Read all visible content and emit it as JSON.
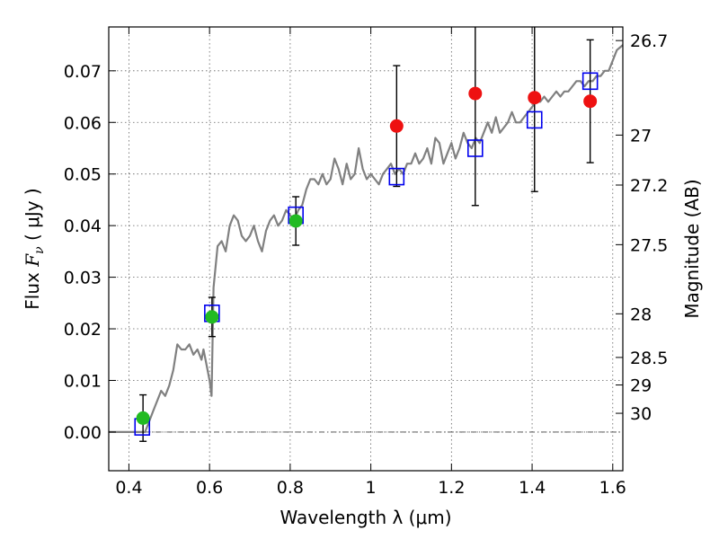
{
  "chart_data": {
    "type": "scatter",
    "xlabel": "Wavelength  λ (μm)",
    "ylabel_left": {
      "prefix": "Flux  ",
      "symbol": "F",
      "subscript": "ν",
      "suffix": "  ( μJy )"
    },
    "ylabel_right": "Magnitude (AB)",
    "xlim": [
      0.35,
      1.625
    ],
    "ylim": [
      -0.0075,
      0.0785
    ],
    "x_ticks": [
      {
        "value": 0.4,
        "label": "0.4"
      },
      {
        "value": 0.6,
        "label": "0.6"
      },
      {
        "value": 0.8,
        "label": "0.8"
      },
      {
        "value": 1.0,
        "label": "1"
      },
      {
        "value": 1.2,
        "label": "1.2"
      },
      {
        "value": 1.4,
        "label": "1.4"
      },
      {
        "value": 1.6,
        "label": "1.6"
      }
    ],
    "y_ticks": [
      {
        "value": 0.0,
        "label": "0.00"
      },
      {
        "value": 0.01,
        "label": "0.01"
      },
      {
        "value": 0.02,
        "label": "0.02"
      },
      {
        "value": 0.03,
        "label": "0.03"
      },
      {
        "value": 0.04,
        "label": "0.04"
      },
      {
        "value": 0.05,
        "label": "0.05"
      },
      {
        "value": 0.06,
        "label": "0.06"
      },
      {
        "value": 0.07,
        "label": "0.07"
      }
    ],
    "right_ticks": [
      {
        "mag": 26.7,
        "label": "26.7"
      },
      {
        "mag": 27,
        "label": "27"
      },
      {
        "mag": 27.2,
        "label": "27.2"
      },
      {
        "mag": 27.5,
        "label": "27.5"
      },
      {
        "mag": 28,
        "label": "28"
      },
      {
        "mag": 28.5,
        "label": "28.5"
      },
      {
        "mag": 29,
        "label": "29"
      },
      {
        "mag": 30,
        "label": "30"
      }
    ],
    "magnitude_zero_point": 23.9,
    "grid": true,
    "zero_line": true,
    "colors": {
      "spectrum": "#808080",
      "model": "#0000ee",
      "detection": "#22bb22",
      "nondetection": "#ee1111",
      "errorbar": "#000000",
      "axis": "#000000",
      "grid": "#606060"
    },
    "spectrum": {
      "x": [
        0.35,
        0.43,
        0.44,
        0.45,
        0.46,
        0.47,
        0.48,
        0.49,
        0.5,
        0.51,
        0.52,
        0.53,
        0.54,
        0.55,
        0.56,
        0.57,
        0.58,
        0.585,
        0.59,
        0.6,
        0.605,
        0.61,
        0.62,
        0.63,
        0.64,
        0.65,
        0.66,
        0.67,
        0.68,
        0.69,
        0.7,
        0.71,
        0.72,
        0.73,
        0.74,
        0.75,
        0.76,
        0.77,
        0.78,
        0.79,
        0.8,
        0.81,
        0.82,
        0.83,
        0.84,
        0.85,
        0.86,
        0.87,
        0.88,
        0.89,
        0.9,
        0.91,
        0.92,
        0.93,
        0.94,
        0.95,
        0.96,
        0.97,
        0.98,
        0.99,
        1.0,
        1.01,
        1.02,
        1.03,
        1.04,
        1.05,
        1.06,
        1.07,
        1.08,
        1.09,
        1.1,
        1.11,
        1.12,
        1.13,
        1.14,
        1.15,
        1.16,
        1.17,
        1.18,
        1.19,
        1.2,
        1.21,
        1.22,
        1.23,
        1.24,
        1.25,
        1.26,
        1.27,
        1.28,
        1.29,
        1.3,
        1.31,
        1.32,
        1.33,
        1.34,
        1.35,
        1.36,
        1.37,
        1.38,
        1.39,
        1.4,
        1.41,
        1.42,
        1.43,
        1.44,
        1.45,
        1.46,
        1.47,
        1.48,
        1.49,
        1.5,
        1.51,
        1.52,
        1.53,
        1.54,
        1.55,
        1.56,
        1.57,
        1.58,
        1.59,
        1.6,
        1.61,
        1.625
      ],
      "y": [
        0.0,
        0.0,
        0.0,
        0.002,
        0.004,
        0.006,
        0.008,
        0.007,
        0.009,
        0.012,
        0.017,
        0.016,
        0.016,
        0.017,
        0.015,
        0.016,
        0.014,
        0.016,
        0.014,
        0.01,
        0.007,
        0.028,
        0.036,
        0.037,
        0.035,
        0.04,
        0.042,
        0.041,
        0.038,
        0.037,
        0.038,
        0.04,
        0.037,
        0.035,
        0.039,
        0.041,
        0.042,
        0.04,
        0.041,
        0.043,
        0.042,
        0.041,
        0.043,
        0.044,
        0.047,
        0.049,
        0.049,
        0.048,
        0.05,
        0.048,
        0.049,
        0.053,
        0.051,
        0.048,
        0.052,
        0.049,
        0.05,
        0.055,
        0.051,
        0.049,
        0.05,
        0.049,
        0.048,
        0.05,
        0.051,
        0.052,
        0.05,
        0.051,
        0.05,
        0.052,
        0.052,
        0.054,
        0.052,
        0.053,
        0.055,
        0.052,
        0.057,
        0.056,
        0.052,
        0.054,
        0.056,
        0.053,
        0.055,
        0.058,
        0.056,
        0.055,
        0.057,
        0.056,
        0.058,
        0.06,
        0.058,
        0.061,
        0.058,
        0.059,
        0.06,
        0.062,
        0.06,
        0.06,
        0.061,
        0.062,
        0.063,
        0.064,
        0.064,
        0.065,
        0.064,
        0.065,
        0.066,
        0.065,
        0.066,
        0.066,
        0.067,
        0.068,
        0.068,
        0.067,
        0.068,
        0.068,
        0.069,
        0.069,
        0.07,
        0.07,
        0.072,
        0.074,
        0.075
      ]
    },
    "model_points": [
      {
        "x": 0.433,
        "y": 0.001
      },
      {
        "x": 0.606,
        "y": 0.023
      },
      {
        "x": 0.814,
        "y": 0.042
      },
      {
        "x": 1.064,
        "y": 0.0495
      },
      {
        "x": 1.259,
        "y": 0.055
      },
      {
        "x": 1.406,
        "y": 0.0605
      },
      {
        "x": 1.544,
        "y": 0.068
      }
    ],
    "detections": [
      {
        "x": 0.435,
        "y": 0.0027,
        "err": 0.0045
      },
      {
        "x": 0.606,
        "y": 0.0223,
        "err": 0.0038
      },
      {
        "x": 0.814,
        "y": 0.0409,
        "err": 0.0047
      }
    ],
    "nondetections": [
      {
        "x": 1.064,
        "y": 0.0593,
        "err": 0.0117
      },
      {
        "x": 1.259,
        "y": 0.0656,
        "err": 0.0217
      },
      {
        "x": 1.406,
        "y": 0.0648,
        "err": 0.0182
      },
      {
        "x": 1.544,
        "y": 0.0641,
        "err": 0.0119
      }
    ]
  }
}
